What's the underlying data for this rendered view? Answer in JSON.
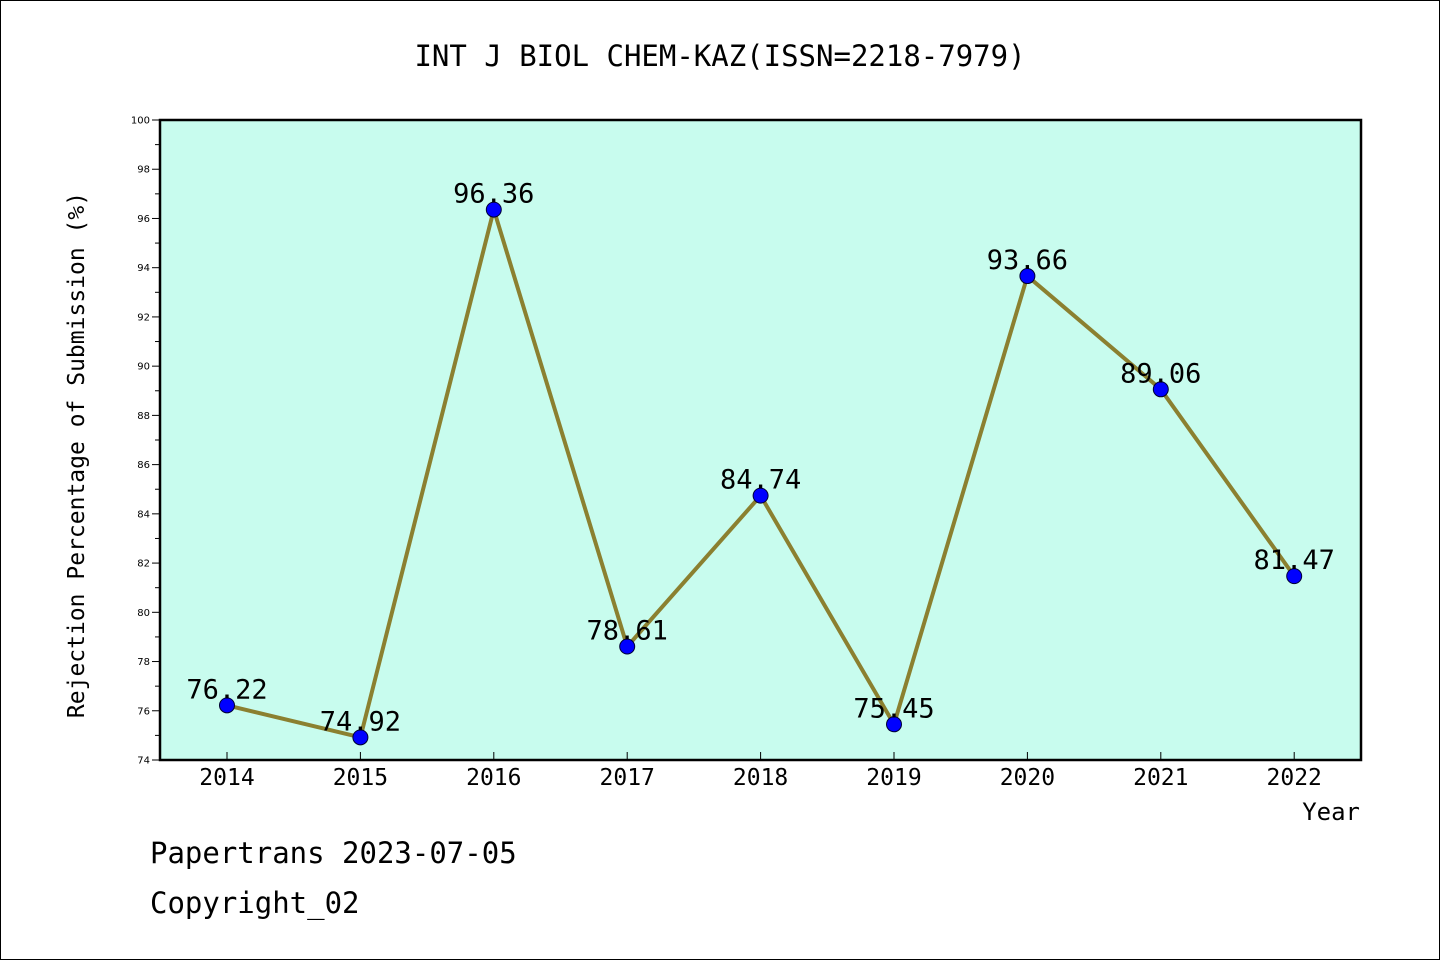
{
  "chart_data": {
    "type": "line",
    "title": "INT J BIOL CHEM-KAZ(ISSN=2218-7979)",
    "xlabel": "Year",
    "ylabel": "Rejection Percentage of Submission (%)",
    "categories": [
      "2014",
      "2015",
      "2016",
      "2017",
      "2018",
      "2019",
      "2020",
      "2021",
      "2022"
    ],
    "series": [
      {
        "values": [
          76.22,
          74.92,
          96.36,
          78.61,
          84.74,
          75.45,
          93.66,
          89.06,
          81.47
        ],
        "labels": [
          "76.22",
          "74.92",
          "96.36",
          "78.61",
          "84.74",
          "75.45",
          "93.66",
          "89.06",
          "81.47"
        ]
      }
    ],
    "ylim": [
      74,
      100
    ],
    "yticks": [
      "74",
      "76",
      "78",
      "80",
      "82",
      "84",
      "86",
      "88",
      "90",
      "92",
      "94",
      "96",
      "98",
      "100"
    ],
    "grid": false,
    "plot_background": "#c8fcee",
    "line_color": "#8b8030",
    "marker_color": "#0000ff"
  },
  "footer": {
    "line1": "Papertrans 2023-07-05",
    "line2": "Copyright_02"
  }
}
